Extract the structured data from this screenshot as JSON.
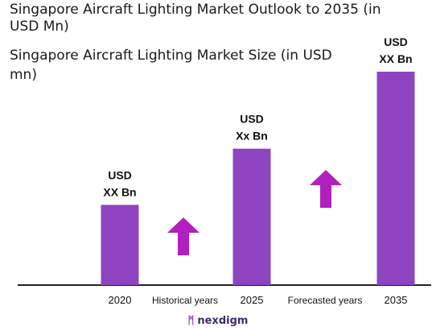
{
  "chart_data": {
    "type": "bar",
    "title": "Singapore Aircraft Lighting Market Outlook to 2035 (in USD Mn)",
    "subtitle": "Singapore Aircraft Lighting Market Size (in USD mn)",
    "categories": [
      "2020",
      "2025",
      "2035"
    ],
    "values": [
      100,
      170,
      266
    ],
    "data_labels": [
      "USD\nXX Bn",
      "USD\nXx Bn",
      "USD\nXX Bn"
    ],
    "annotations": [
      {
        "text": "Historical years",
        "between": [
          "2020",
          "2025"
        ]
      },
      {
        "text": "Forecasted years",
        "between": [
          "2025",
          "2035"
        ]
      }
    ],
    "bar_color": "#8e44c0",
    "arrow_color": "#b21fbf",
    "ylim": [
      0,
      266
    ],
    "grid": false,
    "legend": "none"
  },
  "brand": {
    "name": "nexdigm",
    "mark": "ᛗ"
  }
}
